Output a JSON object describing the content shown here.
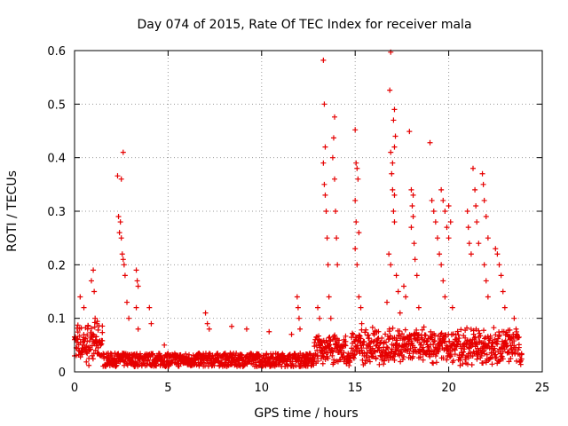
{
  "chart_data": {
    "type": "scatter",
    "title": "Day 074 of 2015, Rate Of TEC Index for receiver mala",
    "xlabel": "GPS time / hours",
    "ylabel": "ROTI / TECUs",
    "xlim": [
      0,
      25
    ],
    "ylim": [
      0,
      0.6
    ],
    "xticks": [
      0,
      5,
      10,
      15,
      20,
      25
    ],
    "yticks": [
      0,
      0.1,
      0.2,
      0.3,
      0.4,
      0.5,
      0.6
    ],
    "xtick_labels": [
      "0",
      "5",
      "10",
      "15",
      "20",
      "25"
    ],
    "ytick_labels": [
      "0",
      "0.1",
      "0.2",
      "0.3",
      "0.4",
      "0.5",
      "0.6"
    ],
    "grid": true,
    "marker": "+",
    "color": "#e60000",
    "series": [
      {
        "name": "ROTI",
        "points": [
          [
            0.3,
            0.14
          ],
          [
            0.5,
            0.12
          ],
          [
            0.7,
            0.08
          ],
          [
            0.9,
            0.17
          ],
          [
            1.0,
            0.19
          ],
          [
            1.05,
            0.15
          ],
          [
            1.1,
            0.1
          ],
          [
            1.2,
            0.09
          ],
          [
            2.3,
            0.366
          ],
          [
            2.5,
            0.36
          ],
          [
            2.6,
            0.41
          ],
          [
            2.35,
            0.29
          ],
          [
            2.45,
            0.28
          ],
          [
            2.4,
            0.26
          ],
          [
            2.5,
            0.25
          ],
          [
            2.55,
            0.22
          ],
          [
            2.6,
            0.21
          ],
          [
            2.65,
            0.2
          ],
          [
            2.7,
            0.18
          ],
          [
            2.8,
            0.13
          ],
          [
            2.9,
            0.1
          ],
          [
            3.3,
            0.19
          ],
          [
            3.35,
            0.17
          ],
          [
            3.4,
            0.16
          ],
          [
            3.3,
            0.12
          ],
          [
            3.4,
            0.08
          ],
          [
            4.0,
            0.12
          ],
          [
            4.1,
            0.09
          ],
          [
            4.8,
            0.05
          ],
          [
            7.0,
            0.11
          ],
          [
            7.1,
            0.09
          ],
          [
            7.2,
            0.08
          ],
          [
            8.4,
            0.085
          ],
          [
            9.2,
            0.08
          ],
          [
            10.4,
            0.075
          ],
          [
            11.6,
            0.07
          ],
          [
            11.9,
            0.14
          ],
          [
            11.95,
            0.12
          ],
          [
            12.0,
            0.1
          ],
          [
            12.05,
            0.08
          ],
          [
            13.3,
            0.582
          ],
          [
            13.35,
            0.5
          ],
          [
            13.4,
            0.42
          ],
          [
            13.3,
            0.39
          ],
          [
            13.35,
            0.35
          ],
          [
            13.4,
            0.33
          ],
          [
            13.45,
            0.3
          ],
          [
            13.5,
            0.25
          ],
          [
            13.55,
            0.2
          ],
          [
            13.6,
            0.14
          ],
          [
            13.7,
            0.1
          ],
          [
            13.9,
            0.476
          ],
          [
            13.85,
            0.437
          ],
          [
            13.8,
            0.4
          ],
          [
            13.9,
            0.36
          ],
          [
            13.95,
            0.3
          ],
          [
            14.0,
            0.25
          ],
          [
            14.05,
            0.2
          ],
          [
            13.0,
            0.12
          ],
          [
            13.1,
            0.1
          ],
          [
            15.0,
            0.452
          ],
          [
            15.05,
            0.39
          ],
          [
            15.1,
            0.38
          ],
          [
            15.15,
            0.36
          ],
          [
            15.0,
            0.32
          ],
          [
            15.05,
            0.28
          ],
          [
            15.2,
            0.26
          ],
          [
            15.0,
            0.23
          ],
          [
            15.1,
            0.2
          ],
          [
            15.2,
            0.14
          ],
          [
            15.3,
            0.12
          ],
          [
            15.35,
            0.09
          ],
          [
            16.9,
            0.597
          ],
          [
            16.85,
            0.526
          ],
          [
            17.1,
            0.49
          ],
          [
            17.05,
            0.47
          ],
          [
            17.15,
            0.44
          ],
          [
            17.1,
            0.42
          ],
          [
            16.9,
            0.41
          ],
          [
            17.0,
            0.39
          ],
          [
            16.95,
            0.37
          ],
          [
            17.0,
            0.34
          ],
          [
            17.1,
            0.33
          ],
          [
            17.05,
            0.3
          ],
          [
            17.1,
            0.28
          ],
          [
            16.8,
            0.22
          ],
          [
            16.9,
            0.2
          ],
          [
            17.2,
            0.18
          ],
          [
            17.3,
            0.15
          ],
          [
            16.7,
            0.13
          ],
          [
            17.4,
            0.11
          ],
          [
            17.9,
            0.449
          ],
          [
            18.0,
            0.34
          ],
          [
            18.1,
            0.33
          ],
          [
            18.05,
            0.31
          ],
          [
            18.1,
            0.29
          ],
          [
            18.0,
            0.27
          ],
          [
            18.15,
            0.24
          ],
          [
            18.2,
            0.21
          ],
          [
            18.3,
            0.18
          ],
          [
            17.6,
            0.16
          ],
          [
            17.7,
            0.14
          ],
          [
            18.4,
            0.12
          ],
          [
            19.0,
            0.428
          ],
          [
            19.1,
            0.32
          ],
          [
            19.2,
            0.3
          ],
          [
            19.3,
            0.28
          ],
          [
            19.4,
            0.25
          ],
          [
            19.5,
            0.22
          ],
          [
            19.6,
            0.34
          ],
          [
            19.7,
            0.32
          ],
          [
            19.8,
            0.3
          ],
          [
            19.9,
            0.27
          ],
          [
            20.0,
            0.31
          ],
          [
            20.1,
            0.28
          ],
          [
            20.0,
            0.25
          ],
          [
            19.6,
            0.2
          ],
          [
            19.7,
            0.17
          ],
          [
            19.8,
            0.14
          ],
          [
            20.2,
            0.12
          ],
          [
            21.0,
            0.3
          ],
          [
            21.05,
            0.27
          ],
          [
            21.1,
            0.24
          ],
          [
            21.2,
            0.22
          ],
          [
            21.3,
            0.38
          ],
          [
            21.4,
            0.34
          ],
          [
            21.45,
            0.31
          ],
          [
            21.5,
            0.28
          ],
          [
            21.6,
            0.24
          ],
          [
            21.8,
            0.37
          ],
          [
            21.85,
            0.35
          ],
          [
            21.9,
            0.32
          ],
          [
            22.0,
            0.29
          ],
          [
            22.1,
            0.25
          ],
          [
            21.9,
            0.2
          ],
          [
            22.0,
            0.17
          ],
          [
            22.1,
            0.14
          ],
          [
            22.5,
            0.23
          ],
          [
            22.6,
            0.22
          ],
          [
            22.7,
            0.2
          ],
          [
            22.8,
            0.18
          ],
          [
            22.9,
            0.15
          ],
          [
            23.0,
            0.12
          ],
          [
            23.5,
            0.1
          ],
          [
            23.6,
            0.08
          ]
        ]
      }
    ]
  }
}
